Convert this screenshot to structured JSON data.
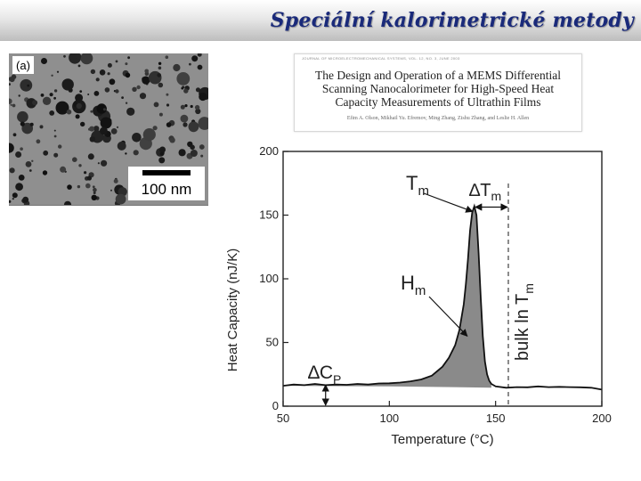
{
  "slide": {
    "title": "Speciální kalorimetrické metody"
  },
  "tem_image": {
    "panel_label": "(a)",
    "scale_bar_label": "100 nm"
  },
  "paper": {
    "journal_line": "JOURNAL OF MICROELECTROMECHANICAL SYSTEMS, VOL. 12, NO. 3, JUNE 2003",
    "title_lines": [
      "The Design and Operation of a MEMS Differential",
      "Scanning Nanocalorimeter for High-Speed Heat",
      "Capacity Measurements of Ultrathin Films"
    ],
    "authors": "Efim A. Olson, Mikhail Yu. Efremov, Ming Zhang, Zishu Zhang, and Leslie H. Allen"
  },
  "chart_data": {
    "type": "line",
    "xlabel": "Temperature (°C)",
    "ylabel": "Heat Capacity (nJ/K)",
    "xlim": [
      50,
      200
    ],
    "ylim": [
      0,
      200
    ],
    "xticks": [
      50,
      100,
      150,
      200
    ],
    "yticks": [
      0,
      50,
      100,
      150,
      200
    ],
    "series": [
      {
        "x": [
          50,
          55,
          60,
          65,
          70,
          75,
          80,
          85,
          90,
          95,
          100,
          105,
          110,
          115,
          120,
          125,
          128,
          131,
          133,
          135,
          136,
          137,
          138,
          139,
          140,
          141,
          142,
          143,
          144,
          145,
          146,
          147,
          148,
          150,
          155,
          160,
          165,
          170,
          175,
          180,
          185,
          190,
          195,
          200
        ],
        "y": [
          16,
          17,
          16.5,
          17.5,
          16.5,
          17,
          16.8,
          17.5,
          17,
          17.8,
          18,
          18.5,
          19.5,
          21,
          24,
          31,
          38,
          48,
          60,
          80,
          96,
          115,
          138,
          152,
          157,
          150,
          120,
          85,
          55,
          35,
          25,
          20,
          17.5,
          15.5,
          14.5,
          15,
          14.8,
          15.5,
          15,
          15.2,
          15,
          14.8,
          14.5,
          13
        ]
      }
    ],
    "baseline": {
      "x": [
        50,
        100,
        130,
        148
      ],
      "y": [
        16,
        15.5,
        15,
        14.5
      ]
    },
    "bulk_tm": 156,
    "annotations": {
      "tm": "T",
      "tm_sub": "m",
      "dtm": "∆T",
      "dtm_sub": "m",
      "hm": "H",
      "hm_sub": "m",
      "dcp": "∆C",
      "dcp_sub": "P",
      "bulk": "bulk ln T",
      "bulk_sub": "m"
    }
  }
}
